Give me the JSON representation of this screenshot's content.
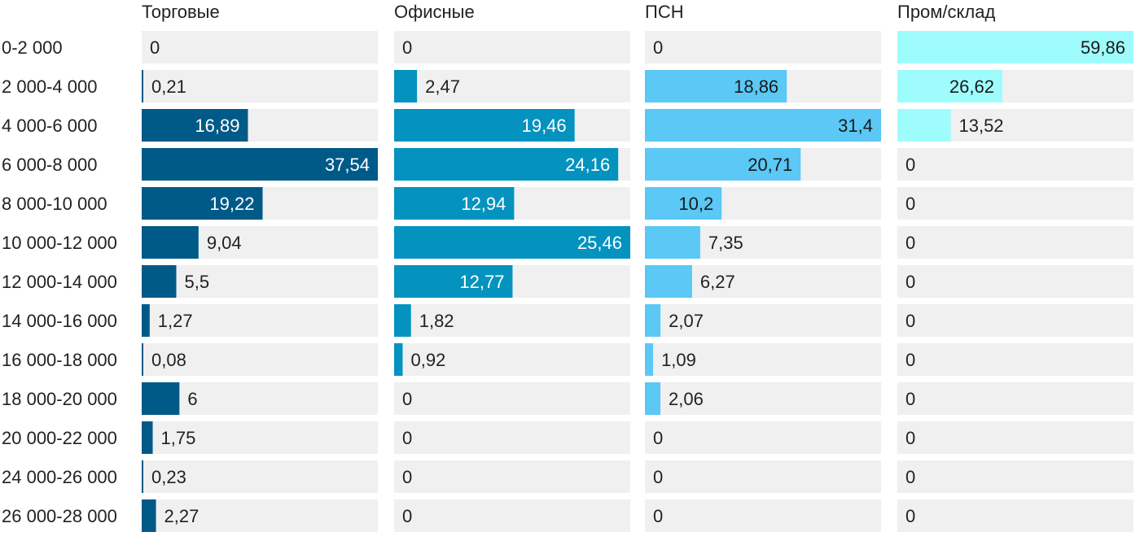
{
  "chart_data": {
    "type": "bar",
    "orientation": "horizontal",
    "layout": "small-multiples",
    "categories": [
      "0-2 000",
      "2 000-4 000",
      "4 000-6 000",
      "6 000-8 000",
      "8 000-10 000",
      "10 000-12 000",
      "12 000-14 000",
      "14 000-16 000",
      "16 000-18 000",
      "18 000-20 000",
      "20 000-22 000",
      "24 000-26 000",
      "26 000-28 000"
    ],
    "series": [
      {
        "name": "Торговые",
        "color": "#005a87",
        "text_inside": "#ffffff",
        "values": [
          0,
          0.21,
          16.89,
          37.54,
          19.22,
          9.04,
          5.5,
          1.27,
          0.08,
          6,
          1.75,
          0.23,
          2.27
        ],
        "labels": [
          "0",
          "0,21",
          "16,89",
          "37,54",
          "19,22",
          "9,04",
          "5,5",
          "1,27",
          "0,08",
          "6",
          "1,75",
          "0,23",
          "2,27"
        ]
      },
      {
        "name": "Офисные",
        "color": "#0493bf",
        "text_inside": "#ffffff",
        "values": [
          0,
          2.47,
          19.46,
          24.16,
          12.94,
          25.46,
          12.77,
          1.82,
          0.92,
          0,
          0,
          0,
          0
        ],
        "labels": [
          "0",
          "2,47",
          "19,46",
          "24,16",
          "12,94",
          "25,46",
          "12,77",
          "1,82",
          "0,92",
          "0",
          "0",
          "0",
          "0"
        ]
      },
      {
        "name": "ПСН",
        "color": "#5bc8f5",
        "text_inside": "#1a1a1a",
        "values": [
          0,
          18.86,
          31.4,
          20.71,
          10.2,
          7.35,
          6.27,
          2.07,
          1.09,
          2.06,
          0,
          0,
          0
        ],
        "labels": [
          "0",
          "18,86",
          "31,4",
          "20,71",
          "10,2",
          "7,35",
          "6,27",
          "2,07",
          "1,09",
          "2,06",
          "0",
          "0",
          "0"
        ]
      },
      {
        "name": "Пром/склад",
        "color": "#9ffcfd",
        "text_inside": "#1a1a1a",
        "values": [
          59.86,
          26.62,
          13.52,
          0,
          0,
          0,
          0,
          0,
          0,
          0,
          0,
          0,
          0
        ],
        "labels": [
          "59,86",
          "26,62",
          "13,52",
          "0",
          "0",
          "0",
          "0",
          "0",
          "0",
          "0",
          "0",
          "0",
          "0"
        ]
      }
    ],
    "track_color": "#f0f0f0",
    "text_color": "#222222",
    "grid": false,
    "legend": "none"
  }
}
